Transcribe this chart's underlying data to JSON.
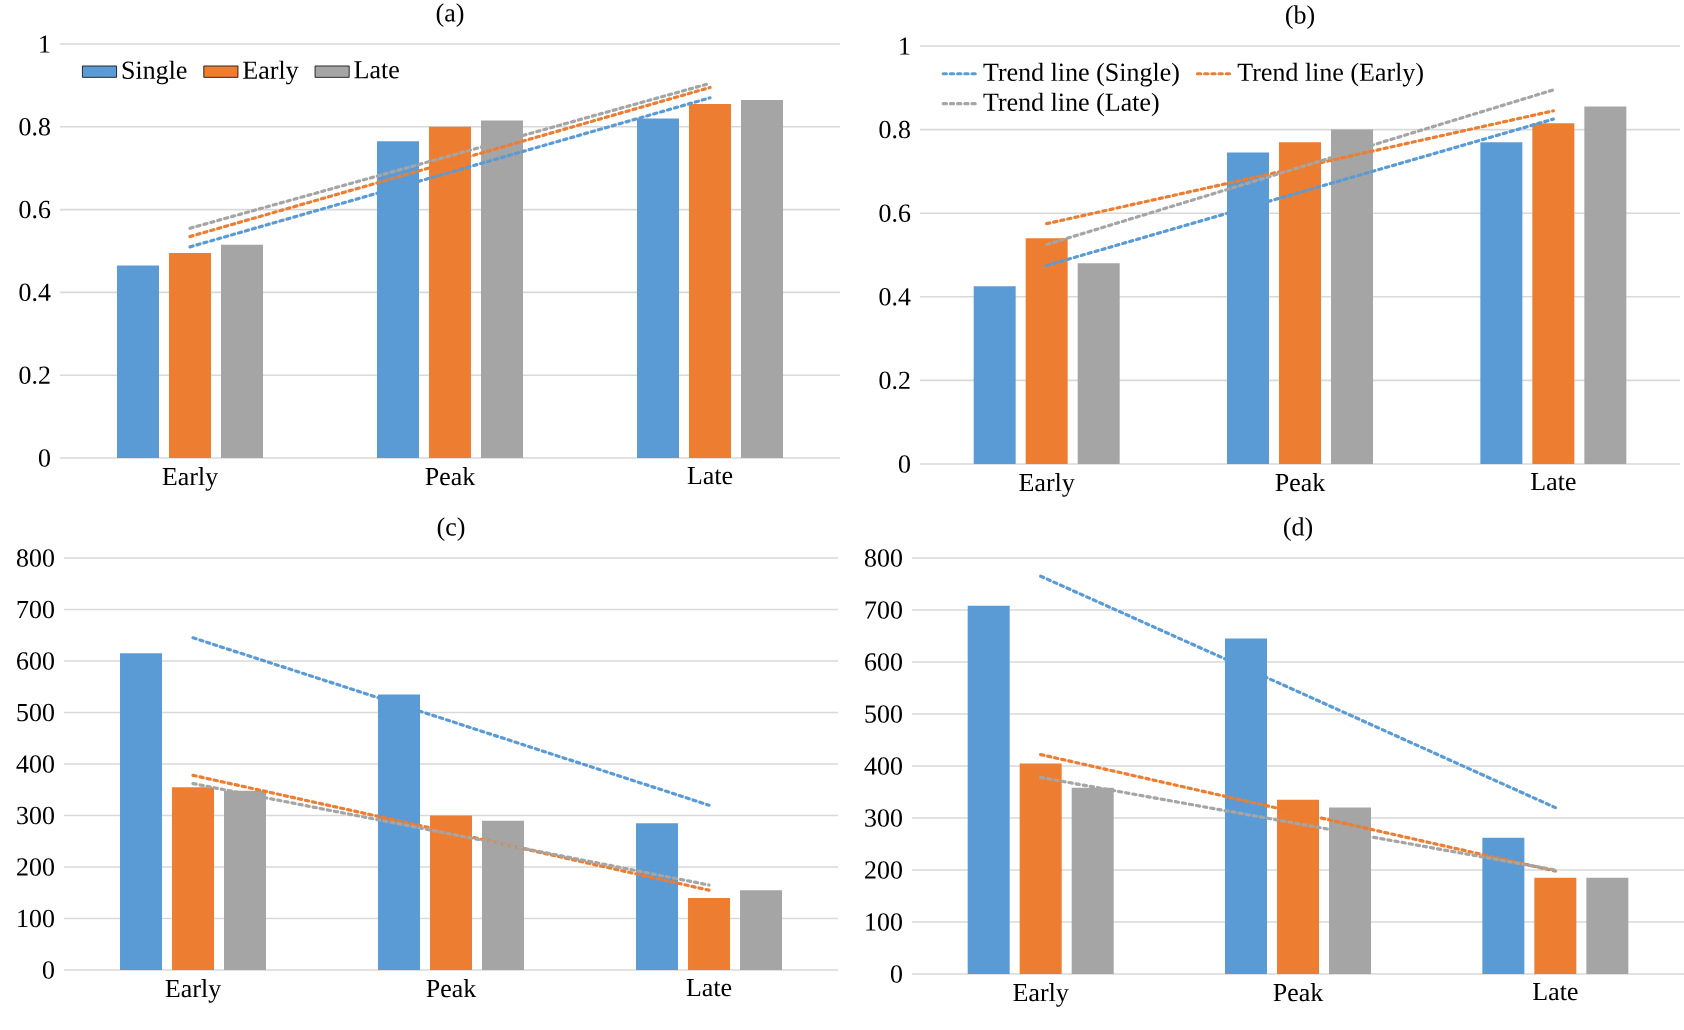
{
  "chart_data": [
    {
      "type": "bar",
      "title": "(a)",
      "categories": [
        "Early",
        "Peak",
        "Late"
      ],
      "ylim": [
        0,
        1
      ],
      "yticks": [
        0,
        0.2,
        0.4,
        0.6,
        0.8,
        1
      ],
      "grid": "y",
      "legend": "top left",
      "series": [
        {
          "name": "Single",
          "color": "#5b9bd5",
          "values": [
            0.465,
            0.765,
            0.82
          ]
        },
        {
          "name": "Early",
          "color": "#ed7d31",
          "values": [
            0.495,
            0.8,
            0.855
          ]
        },
        {
          "name": "Late",
          "color": "#a5a5a5",
          "values": [
            0.515,
            0.815,
            0.865
          ]
        },
        {
          "type": "line",
          "line_style": "dotted",
          "color": "#5b9bd5",
          "values": [
            0.51,
            0.69,
            0.87
          ]
        },
        {
          "type": "line",
          "line_style": "dotted",
          "color": "#ed7d31",
          "values": [
            0.535,
            0.715,
            0.895
          ]
        },
        {
          "type": "line",
          "line_style": "dotted",
          "color": "#a5a5a5",
          "values": [
            0.555,
            0.73,
            0.905
          ]
        }
      ]
    },
    {
      "type": "bar",
      "title": "(b)",
      "categories": [
        "Early",
        "Peak",
        "Late"
      ],
      "ylim": [
        0,
        1
      ],
      "yticks": [
        0,
        0.2,
        0.4,
        0.6,
        0.8,
        1
      ],
      "grid": "y",
      "legend": "top left",
      "series": [
        {
          "color": "#5b9bd5",
          "values": [
            0.425,
            0.745,
            0.77
          ]
        },
        {
          "color": "#ed7d31",
          "values": [
            0.54,
            0.77,
            0.815
          ]
        },
        {
          "color": "#a5a5a5",
          "values": [
            0.48,
            0.8,
            0.855
          ]
        },
        {
          "name": "Trend line (Single)",
          "type": "line",
          "line_style": "dotted",
          "color": "#5b9bd5",
          "values": [
            0.475,
            0.65,
            0.825
          ]
        },
        {
          "name": "Trend line (Early)",
          "type": "line",
          "line_style": "dotted",
          "color": "#ed7d31",
          "values": [
            0.575,
            0.71,
            0.845
          ]
        },
        {
          "name": "Trend line (Late)",
          "type": "line",
          "line_style": "dotted",
          "color": "#a5a5a5",
          "values": [
            0.525,
            0.71,
            0.895
          ]
        }
      ]
    },
    {
      "type": "bar",
      "title": "(c)",
      "categories": [
        "Early",
        "Peak",
        "Late"
      ],
      "ylim": [
        0,
        800
      ],
      "yticks": [
        0,
        100,
        200,
        300,
        400,
        500,
        600,
        700,
        800
      ],
      "grid": "y",
      "series": [
        {
          "color": "#5b9bd5",
          "values": [
            615,
            535,
            285
          ]
        },
        {
          "color": "#ed7d31",
          "values": [
            355,
            300,
            140
          ]
        },
        {
          "color": "#a5a5a5",
          "values": [
            348,
            290,
            155
          ]
        },
        {
          "type": "line",
          "line_style": "dotted",
          "color": "#5b9bd5",
          "values": [
            645,
            483,
            320
          ]
        },
        {
          "type": "line",
          "line_style": "dotted",
          "color": "#ed7d31",
          "values": [
            378,
            267,
            155
          ]
        },
        {
          "type": "line",
          "line_style": "dotted",
          "color": "#a5a5a5",
          "values": [
            362,
            264,
            165
          ]
        }
      ]
    },
    {
      "type": "bar",
      "title": "(d)",
      "categories": [
        "Early",
        "Peak",
        "Late"
      ],
      "ylim": [
        0,
        800
      ],
      "yticks": [
        0,
        100,
        200,
        300,
        400,
        500,
        600,
        700,
        800
      ],
      "grid": "y",
      "series": [
        {
          "color": "#5b9bd5",
          "values": [
            708,
            645,
            262
          ]
        },
        {
          "color": "#ed7d31",
          "values": [
            405,
            335,
            185
          ]
        },
        {
          "color": "#a5a5a5",
          "values": [
            358,
            320,
            185
          ]
        },
        {
          "type": "line",
          "line_style": "dotted",
          "color": "#5b9bd5",
          "values": [
            765,
            543,
            320
          ]
        },
        {
          "type": "line",
          "line_style": "dotted",
          "color": "#ed7d31",
          "values": [
            422,
            310,
            198
          ]
        },
        {
          "type": "line",
          "line_style": "dotted",
          "color": "#a5a5a5",
          "values": [
            378,
            289,
            200
          ]
        }
      ]
    }
  ]
}
